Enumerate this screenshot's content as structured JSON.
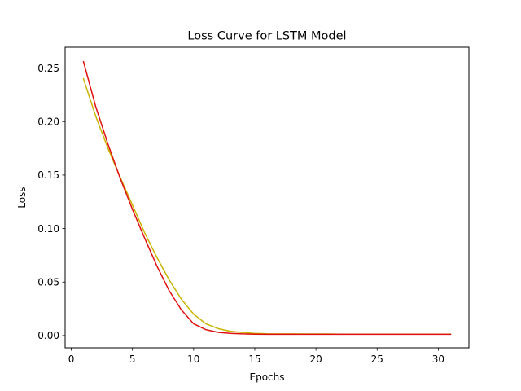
{
  "chart_data": {
    "type": "line",
    "title": "Loss Curve for LSTM Model",
    "xlabel": "Epochs",
    "ylabel": "Loss",
    "xlim": [
      -0.5,
      32.5
    ],
    "ylim": [
      -0.0115,
      0.2695
    ],
    "x_ticks": [
      0,
      5,
      10,
      15,
      20,
      25,
      30
    ],
    "y_ticks": [
      0.0,
      0.05,
      0.1,
      0.15,
      0.2,
      0.25
    ],
    "y_tick_labels": [
      "0.00",
      "0.05",
      "0.10",
      "0.15",
      "0.20",
      "0.25"
    ],
    "x_tick_labels": [
      "0",
      "5",
      "10",
      "15",
      "20",
      "25",
      "30"
    ],
    "grid": false,
    "x": [
      1,
      2,
      3,
      4,
      5,
      6,
      7,
      8,
      9,
      10,
      11,
      12,
      13,
      14,
      15,
      16,
      17,
      18,
      19,
      20,
      21,
      22,
      23,
      24,
      25,
      26,
      27,
      28,
      29,
      30,
      31
    ],
    "series": [
      {
        "color": "#c8b400",
        "values": [
          0.24,
          0.205,
          0.175,
          0.148,
          0.122,
          0.096,
          0.073,
          0.052,
          0.034,
          0.02,
          0.011,
          0.0065,
          0.004,
          0.0028,
          0.002,
          0.0016,
          0.0015,
          0.0015,
          0.0014,
          0.0014,
          0.0014,
          0.0013,
          0.0013,
          0.0013,
          0.0013,
          0.0013,
          0.0013,
          0.0013,
          0.0013,
          0.0013,
          0.0013
        ]
      },
      {
        "color": "#e01010",
        "values": [
          0.256,
          0.214,
          0.179,
          0.147,
          0.118,
          0.091,
          0.065,
          0.042,
          0.024,
          0.011,
          0.0055,
          0.003,
          0.002,
          0.0015,
          0.0013,
          0.0012,
          0.0012,
          0.0012,
          0.0012,
          0.0012,
          0.0012,
          0.0012,
          0.0012,
          0.0012,
          0.0012,
          0.0012,
          0.0012,
          0.0012,
          0.0012,
          0.0012,
          0.0012
        ]
      }
    ]
  }
}
